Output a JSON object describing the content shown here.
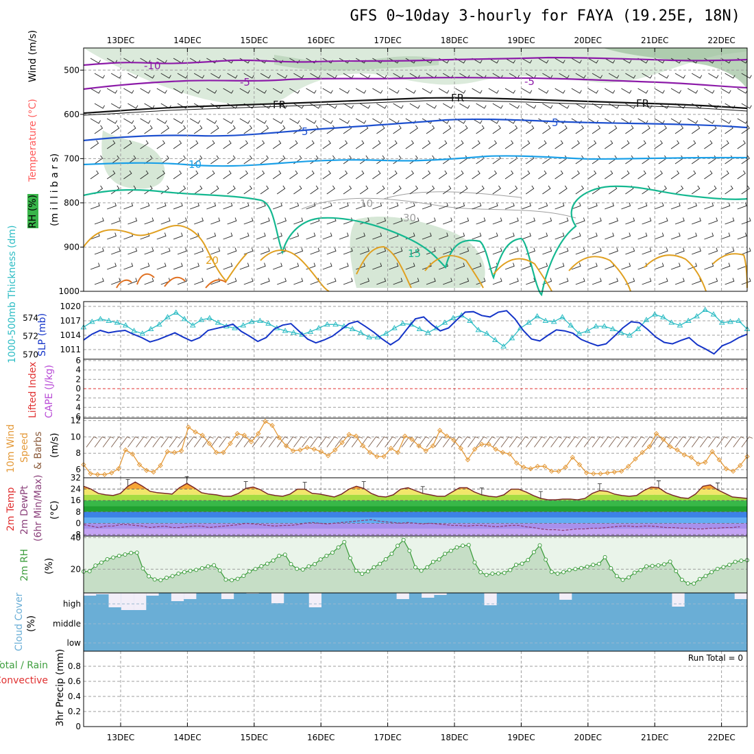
{
  "header": {
    "title": "GFS 0~10day 3-hourly for FAYA (19.25E, 18N)"
  },
  "axis_dates": [
    "13DEC",
    "14DEC",
    "15DEC",
    "16DEC",
    "17DEC",
    "18DEC",
    "19DEC",
    "20DEC",
    "21DEC",
    "22DEC"
  ],
  "colors": {
    "grid": "#9e9e9e",
    "purple": "#8c1aa8",
    "blue": "#1c4fcf",
    "lightblue": "#1aa0e8",
    "teal": "#14b890",
    "orange": "#e0a020",
    "rh": "#cfe3cf",
    "cyan": "#2cbcc4",
    "slp": "#1434c8",
    "wind": "#e49a3a",
    "dewpt": "#8a3f7a",
    "rh2m": "#3e9e3e",
    "cloud": "#6aaed6",
    "cloudbg": "#f2eef8",
    "red": "#e03030"
  },
  "chart_data": [
    {
      "type": "contour",
      "panel": "upper-air",
      "ylabels": [
        "Temperature (°C)",
        "Wind (m/s)",
        "RH (%)",
        "(m i l l i b a r s)"
      ],
      "y_ticks": [
        "500",
        "600",
        "700",
        "800",
        "900",
        "1000"
      ],
      "contour_labels": [
        "-10",
        "-5",
        "FR",
        "5",
        "10",
        "15",
        "20",
        "30",
        "10"
      ],
      "pressure_range": [
        1000,
        450
      ],
      "isotherm_levels": [
        -10,
        -5,
        0,
        5,
        10,
        15
      ]
    },
    {
      "type": "line",
      "panel": "thickness-slp",
      "ylabel_left": "1000-500mb Thickness (dm)",
      "ylabel_right": "SLP (mb)",
      "y_ticks_left": [
        "574",
        "572",
        "570"
      ],
      "y_ticks_right": [
        "1020",
        "1017",
        "1014",
        "1011"
      ],
      "thickness_range": [
        569.5,
        575.8
      ],
      "slp_range": [
        1009,
        1021
      ],
      "series": [
        {
          "name": "Thickness",
          "values": [
            573,
            573.6,
            573.9,
            573.7,
            573.5,
            573.2,
            572.6,
            572.3,
            572.8,
            573.3,
            574.1,
            574.6,
            573.9,
            573.2,
            573.8,
            574,
            573.5,
            573.1,
            572.9,
            573.2,
            573.6,
            573.7,
            573.4,
            572.9,
            572.6,
            572.4,
            572.2,
            572.5,
            572.9,
            573.3,
            573.3,
            573.1,
            572.8,
            572.4,
            571.9,
            571.9,
            572.3,
            572.9,
            573.4,
            573.3,
            572.8,
            572.4,
            572.9,
            573.5,
            574,
            574.3,
            573.7,
            572.7,
            572.3,
            571.6,
            570.9,
            571.8,
            572.9,
            573.5,
            574.2,
            573.7,
            573.6,
            574.1,
            573.2,
            572.3,
            572.6,
            573.1,
            573.1,
            572.8,
            572.4,
            572.1,
            572.8,
            573.8,
            574.4,
            574.1,
            573.5,
            573.2,
            573.7,
            574.2,
            574.9,
            574.4,
            573.5,
            573.6,
            573.7,
            572.8
          ]
        },
        {
          "name": "SLP",
          "values": [
            1013,
            1014.2,
            1015,
            1014.5,
            1014.8,
            1015,
            1014.2,
            1013.5,
            1012.6,
            1013.1,
            1013.8,
            1014.5,
            1013.6,
            1012.8,
            1013.5,
            1015,
            1015.4,
            1015.8,
            1016.3,
            1014.8,
            1013.8,
            1012.7,
            1013.5,
            1015.3,
            1016.1,
            1016.4,
            1014.8,
            1013.2,
            1012.4,
            1013,
            1013.8,
            1015.1,
            1016.4,
            1016.9,
            1015.8,
            1014.6,
            1013.2,
            1012,
            1013.1,
            1015.3,
            1017.4,
            1017.8,
            1016.2,
            1014.9,
            1015.5,
            1017.2,
            1018.8,
            1018.9,
            1018.1,
            1017.8,
            1018.8,
            1019.1,
            1017.4,
            1015,
            1013.2,
            1012.8,
            1014,
            1015.1,
            1014.9,
            1014.4,
            1013.1,
            1012.4,
            1011.8,
            1012.2,
            1013.8,
            1015.5,
            1016.8,
            1016.6,
            1015.2,
            1013.6,
            1012.5,
            1012.2,
            1012.9,
            1013.5,
            1012,
            1011.1,
            1010.1,
            1011.8,
            1012.5,
            1013.5,
            1014.2
          ]
        }
      ]
    },
    {
      "type": "line",
      "panel": "lifted-index-cape",
      "ylabels": [
        "Lifted Index",
        "CAPE (J/kg)"
      ],
      "y_ticks": [
        "6",
        "4",
        "2",
        "0",
        "2",
        "4",
        "6"
      ],
      "lifted_index_zero": 0
    },
    {
      "type": "line",
      "panel": "wind10m",
      "ylabels": [
        "10m Wind",
        "Speed",
        "& Barbs",
        "(m/s)"
      ],
      "y_ticks": [
        "12",
        "10",
        "8",
        "6"
      ],
      "ylim": [
        5,
        12.3
      ],
      "series": [
        {
          "name": "10m Wind Speed",
          "values": [
            6.6,
            5.5,
            5.4,
            5.4,
            5.6,
            6.1,
            8.4,
            7.9,
            6.6,
            5.9,
            5.7,
            6.5,
            8.2,
            8.1,
            8.3,
            11.2,
            10.6,
            10.2,
            9.2,
            8.1,
            8.1,
            9.2,
            10.4,
            10.2,
            9.4,
            10.4,
            11.9,
            11.4,
            9.9,
            8.9,
            8.3,
            8.4,
            8.7,
            8.5,
            8.2,
            7.7,
            8.4,
            9.3,
            10.3,
            10.1,
            8.9,
            8.1,
            7.6,
            7.6,
            8.6,
            8.1,
            10.1,
            9.7,
            8.9,
            8.3,
            8.9,
            10.8,
            10.1,
            9.6,
            8.6,
            7.2,
            8.5,
            9.1,
            9.1,
            8.5,
            8.1,
            7.9,
            6.8,
            6.3,
            6.1,
            6.4,
            6.4,
            5.8,
            5.8,
            6.3,
            7.5,
            6.6,
            5.6,
            5.5,
            5.5,
            5.6,
            5.7,
            5.8,
            6.4,
            7.3,
            8.1,
            8.8,
            10.4,
            9.7,
            8.8,
            8.4,
            7.8,
            7.5,
            6.7,
            6.9,
            8.2,
            7.2,
            6.1,
            5.8,
            6.5,
            7.6
          ]
        }
      ]
    },
    {
      "type": "area",
      "panel": "temp-dewpt",
      "ylabels": [
        "2m Temp",
        "2m DewPt",
        "(6hr Min/Max)",
        "(°C)"
      ],
      "y_ticks": [
        "32",
        "24",
        "16",
        "8",
        "0",
        "-8"
      ],
      "ylim": [
        -9,
        32
      ],
      "series": [
        {
          "name": "2m Temp",
          "values": [
            26,
            24,
            21,
            20,
            19.5,
            21,
            26,
            29,
            26,
            22.5,
            21.5,
            21,
            20.5,
            25,
            28,
            25,
            21.5,
            20.5,
            20,
            19,
            19,
            21,
            24.5,
            25.5,
            23.5,
            20.5,
            19.5,
            19,
            20.5,
            24,
            24,
            21,
            20.5,
            19.5,
            18.5,
            20.5,
            24,
            26,
            24.5,
            21,
            19,
            18.5,
            20,
            24,
            25,
            23,
            21,
            20,
            19,
            19,
            22,
            25,
            25,
            22,
            20,
            19,
            18.5,
            20,
            24,
            24,
            22,
            19.5,
            17.5,
            16.5,
            16.5,
            17,
            17,
            16.5,
            17.5,
            21,
            23,
            22.5,
            20.5,
            19.5,
            19,
            19.5,
            23,
            25.5,
            25,
            21.5,
            19.5,
            18,
            17.5,
            20.5,
            26,
            27,
            23.5,
            21,
            18.5,
            18,
            17.5
          ]
        },
        {
          "name": "2m DewPt",
          "values": [
            -1,
            -2,
            -3,
            -2,
            -2,
            -1,
            -1,
            -1.5,
            -2,
            -3,
            -2.5,
            -2,
            -3,
            -3,
            -2.5,
            -2,
            -2,
            -3,
            -2.5,
            -2,
            -1.5,
            -1,
            0,
            -0.5,
            -1,
            -1.5,
            -2,
            -1.5,
            -1.5,
            -1,
            0,
            0.5,
            0,
            -0.5,
            0,
            0.5,
            1,
            1.5,
            2,
            2.5,
            1.5,
            1,
            0.5,
            0,
            0.5,
            0,
            -0.5,
            0,
            -0.5,
            -1,
            -1.5,
            -1.5,
            -2,
            -1.5,
            -1.5,
            -2,
            -2.5,
            -2,
            -1.5,
            -1.5,
            -2.5,
            -3,
            -4,
            -4.5,
            -4.5,
            -5,
            -4.5,
            -4,
            -4,
            -3.5,
            -3.5,
            -3,
            -2.5,
            -2,
            -2,
            -2.5,
            -2,
            -2,
            -2.5,
            -3,
            -3,
            -3.5,
            -3.5,
            -4,
            -4,
            -3.5,
            -3.5,
            -3,
            -3,
            -2.5
          ]
        }
      ],
      "bands": [
        {
          "range": [
            28,
            32
          ],
          "color": "#e87a18"
        },
        {
          "range": [
            24,
            28
          ],
          "color": "#f6a536"
        },
        {
          "range": [
            20,
            24
          ],
          "color": "#f2e66a"
        },
        {
          "range": [
            16,
            20
          ],
          "color": "#a6dc42"
        },
        {
          "range": [
            12,
            16
          ],
          "color": "#38b848"
        },
        {
          "range": [
            8,
            12
          ],
          "color": "#20a030"
        },
        {
          "range": [
            4,
            8
          ],
          "color": "#3c82e6"
        },
        {
          "range": [
            0,
            4
          ],
          "color": "#62aef2"
        },
        {
          "range": [
            -4,
            0
          ],
          "color": "#a890ec"
        },
        {
          "range": [
            -9,
            -4
          ],
          "color": "#c4a4f4"
        }
      ]
    },
    {
      "type": "area",
      "panel": "rh2m",
      "ylabels": [
        "2m RH",
        "(%)"
      ],
      "y_ticks": [
        "40",
        "20"
      ],
      "ylim": [
        5,
        41
      ],
      "series": [
        {
          "name": "2m RH",
          "values": [
            18.5,
            18.7,
            22.3,
            24.2,
            26.3,
            27.4,
            28.5,
            29.3,
            30.3,
            30.5,
            20.5,
            15.5,
            13.5,
            13.1,
            14.6,
            15.6,
            17.2,
            18.2,
            19,
            19.6,
            20.6,
            21.8,
            22.5,
            19.2,
            13.4,
            13.1,
            13.9,
            15.8,
            18.6,
            20.1,
            21.9,
            23.5,
            25.5,
            28.5,
            29.2,
            23.2,
            20.3,
            19.8,
            21.8,
            23.2,
            26.2,
            28.5,
            30.5,
            33.8,
            37.2,
            27,
            19,
            17.1,
            18.6,
            21.2,
            23.4,
            26.3,
            29.8,
            34.8,
            38.5,
            31.7,
            21.2,
            19.1,
            21.2,
            24.7,
            26.2,
            29.8,
            31.7,
            33.8,
            34.9,
            35.3,
            24.3,
            18.1,
            16.4,
            17.2,
            17.3,
            17.7,
            19.5,
            22.8,
            23.5,
            25.8,
            30.8,
            35.1,
            26.1,
            18.3,
            17.2,
            18.2,
            19.5,
            20.1,
            20.7,
            21.6,
            22.8,
            23.4,
            27.6,
            20.6,
            15.6,
            13.3,
            14.8,
            17.8,
            19.4,
            21.8,
            22.1,
            22.4,
            23.1,
            24.8,
            18.8,
            13.3,
            11,
            10.9,
            13.8,
            15.7,
            18.2,
            20.2,
            21.3,
            22.8,
            24.7,
            25.4,
            25.7
          ]
        }
      ]
    },
    {
      "type": "bar",
      "panel": "cloud-cover",
      "ylabels": [
        "Cloud Cover",
        "(%)"
      ],
      "y_ticks": [
        "high",
        "middle",
        "low"
      ],
      "series": [
        {
          "name": "High cloud gap",
          "values": [
            4,
            2,
            21,
            25,
            25,
            4,
            0,
            12,
            9,
            0,
            0,
            9,
            0,
            1,
            0,
            15,
            0,
            0,
            21,
            0,
            0,
            0,
            0,
            0,
            0,
            9,
            0,
            7,
            3,
            0,
            0,
            0,
            18,
            0,
            0,
            0,
            0,
            0,
            10,
            0,
            0,
            0,
            0,
            0,
            0,
            0,
            0,
            20,
            0,
            0,
            0,
            0,
            9
          ]
        }
      ]
    },
    {
      "type": "bar",
      "panel": "precip",
      "ylabels": [
        "Total / Rain",
        "Convective",
        "3hr Precip (mm)"
      ],
      "y_ticks": [
        "0",
        "0.2",
        "0.4",
        "0.6",
        "0.8"
      ],
      "ylim": [
        0,
        1
      ],
      "run_total": "Run Total = 0"
    }
  ]
}
